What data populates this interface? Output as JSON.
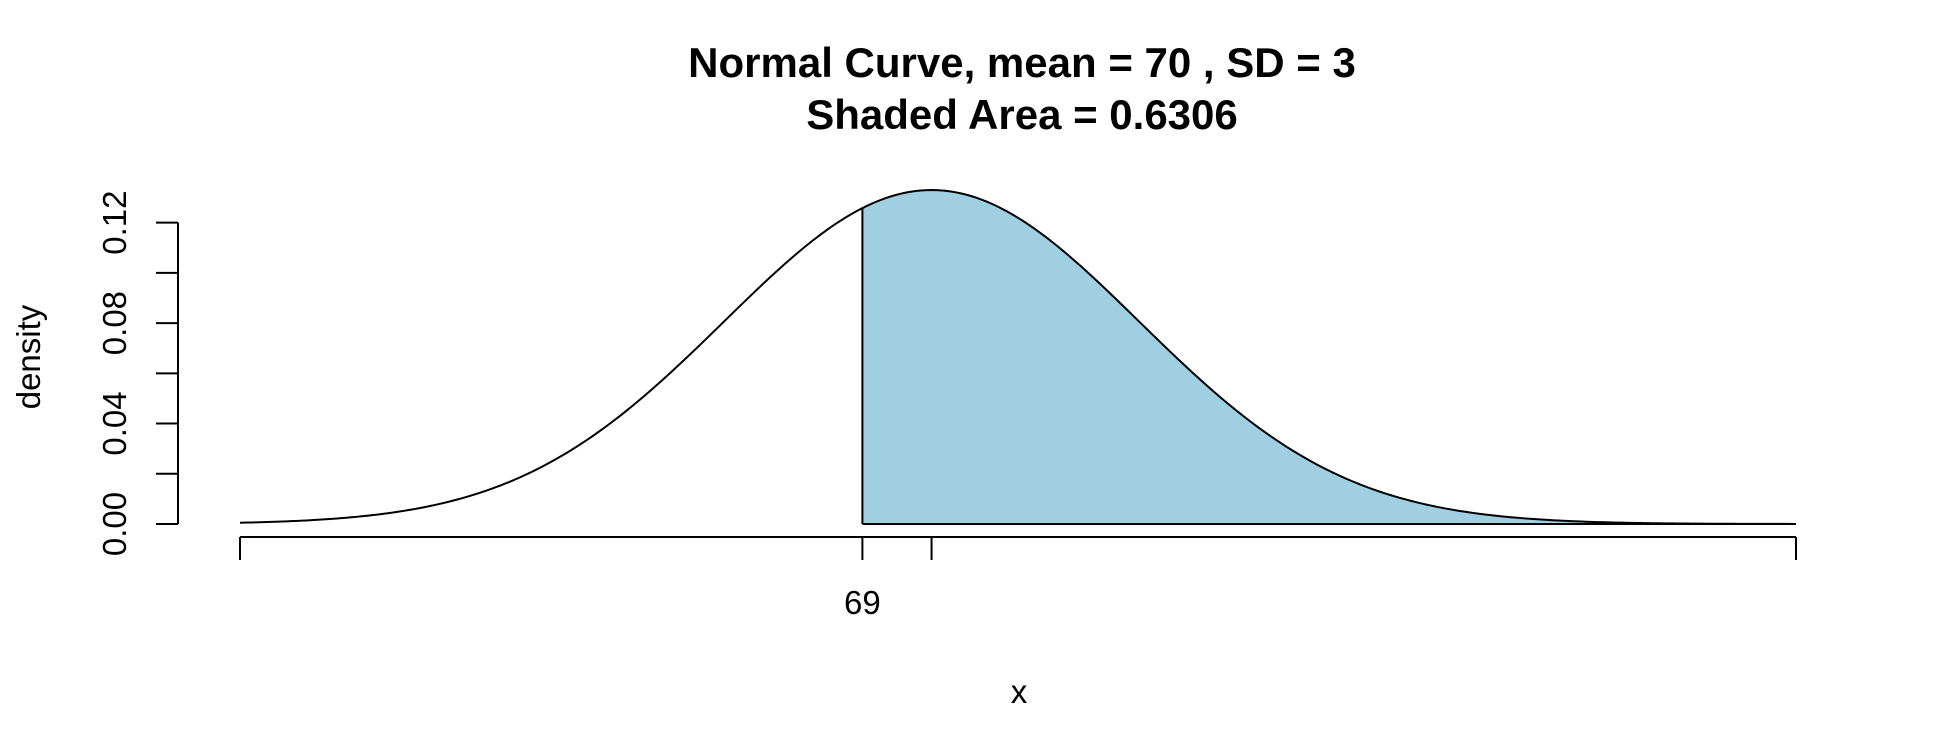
{
  "chart_data": {
    "type": "area",
    "title": "Normal Curve, mean =  70 , SD =  3",
    "subtitle": "Shaded Area =  0.6306",
    "xlabel": "x",
    "ylabel": "density",
    "mean": 70,
    "sd": 3,
    "xlim": [
      60,
      82.5
    ],
    "ylim": [
      0,
      0.133
    ],
    "shaded_region": {
      "from": 69,
      "to": 82.5,
      "area": 0.6306,
      "color": "#9fcfe0"
    },
    "x_ticks": [
      {
        "value": 60,
        "label": ""
      },
      {
        "value": 69,
        "label": "69"
      },
      {
        "value": 70,
        "label": ""
      },
      {
        "value": 82.5,
        "label": ""
      }
    ],
    "y_ticks": [
      {
        "value": 0.0,
        "label": "0.00"
      },
      {
        "value": 0.02,
        "label": ""
      },
      {
        "value": 0.04,
        "label": "0.04"
      },
      {
        "value": 0.06,
        "label": ""
      },
      {
        "value": 0.08,
        "label": "0.08"
      },
      {
        "value": 0.1,
        "label": ""
      },
      {
        "value": 0.12,
        "label": "0.12"
      }
    ],
    "curve_color": "#000000",
    "grid": false,
    "legend": "none"
  }
}
